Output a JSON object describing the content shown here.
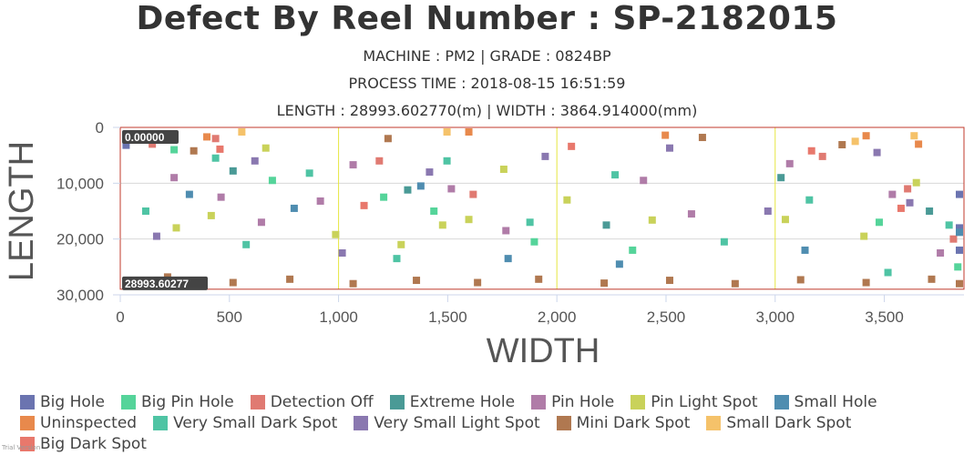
{
  "chart_data": {
    "type": "scatter",
    "title": "Defect By Reel Number : SP-2182015",
    "subtitles": [
      "MACHINE : PM2 | GRADE : 0824BP",
      "PROCESS TIME : 2018-08-15 16:51:59",
      "LENGTH : 28993.602770(m) | WIDTH : 3864.914000(mm)"
    ],
    "xlabel": "WIDTH",
    "ylabel": "LENGTH",
    "xlim": [
      0,
      3864.914
    ],
    "ylim": [
      0,
      30000
    ],
    "y_reversed": true,
    "xticks": [
      0,
      500,
      1000,
      1500,
      2000,
      2500,
      3000,
      3500
    ],
    "xtick_labels": [
      "0",
      "500",
      "1,000",
      "1,500",
      "2,000",
      "2,500",
      "3,000",
      "3,500"
    ],
    "yticks": [
      0,
      10000,
      20000,
      30000
    ],
    "ytick_labels": [
      "0",
      "10,000",
      "20,000",
      "30,000"
    ],
    "y_annotations": [
      {
        "y": 0,
        "label": "0.00000"
      },
      {
        "y": 28993.60277,
        "label": "28993.60277"
      }
    ],
    "lane_lines_x": [
      1000,
      2000,
      3000
    ],
    "reel_length": 28993.60277,
    "legend": [
      {
        "name": "Big Hole",
        "color": "#6b74b0"
      },
      {
        "name": "Big Pin Hole",
        "color": "#55d49a"
      },
      {
        "name": "Detection Off",
        "color": "#e07a72"
      },
      {
        "name": "Extreme Hole",
        "color": "#4a9a96"
      },
      {
        "name": "Pin Hole",
        "color": "#b07ca8"
      },
      {
        "name": "Pin Light Spot",
        "color": "#c9d25a"
      },
      {
        "name": "Small Hole",
        "color": "#4f8db0"
      },
      {
        "name": "Uninspected",
        "color": "#e8894c"
      },
      {
        "name": "Very Small Dark Spot",
        "color": "#4fc4a4"
      },
      {
        "name": "Very Small Light Spot",
        "color": "#8a78b0"
      },
      {
        "name": "Mini Dark Spot",
        "color": "#b07850"
      },
      {
        "name": "Small Dark Spot",
        "color": "#f5c26a"
      },
      {
        "name": "Big Dark Spot",
        "color": "#e8786c"
      }
    ],
    "series": [
      {
        "name": "Big Hole",
        "points": [
          [
            10,
            3200
          ],
          [
            3840,
            12000
          ],
          [
            3850,
            18000
          ],
          [
            3860,
            22000
          ]
        ]
      },
      {
        "name": "Big Pin Hole",
        "points": [
          [
            230,
            4000
          ],
          [
            680,
            9500
          ],
          [
            1190,
            12500
          ],
          [
            1420,
            15000
          ],
          [
            1880,
            20500
          ],
          [
            2330,
            22000
          ],
          [
            3460,
            17000
          ],
          [
            3820,
            25000
          ]
        ]
      },
      {
        "name": "Detection Off",
        "points": [
          [
            130,
            3000
          ],
          [
            420,
            2000
          ],
          [
            1170,
            6000
          ],
          [
            1600,
            12000
          ],
          [
            3200,
            5200
          ],
          [
            3590,
            11000
          ],
          [
            3800,
            20000
          ]
        ]
      },
      {
        "name": "Extreme Hole",
        "points": [
          [
            500,
            7800
          ],
          [
            1300,
            11200
          ],
          [
            2210,
            17500
          ],
          [
            3010,
            9000
          ],
          [
            3690,
            15000
          ]
        ]
      },
      {
        "name": "Pin Hole",
        "points": [
          [
            230,
            9000
          ],
          [
            445,
            12500
          ],
          [
            630,
            17000
          ],
          [
            900,
            13200
          ],
          [
            1050,
            6700
          ],
          [
            1500,
            11000
          ],
          [
            1750,
            18500
          ],
          [
            2380,
            9500
          ],
          [
            2600,
            15500
          ],
          [
            3050,
            6500
          ],
          [
            3520,
            12000
          ],
          [
            3740,
            22500
          ]
        ]
      },
      {
        "name": "Pin Light Spot",
        "points": [
          [
            240,
            18000
          ],
          [
            400,
            15800
          ],
          [
            650,
            3700
          ],
          [
            970,
            19200
          ],
          [
            1270,
            21000
          ],
          [
            1460,
            17500
          ],
          [
            1580,
            16500
          ],
          [
            1740,
            7500
          ],
          [
            2030,
            13000
          ],
          [
            2420,
            16600
          ],
          [
            3030,
            16500
          ],
          [
            3390,
            19500
          ],
          [
            3630,
            9900
          ]
        ]
      },
      {
        "name": "Small Hole",
        "points": [
          [
            300,
            12000
          ],
          [
            780,
            14500
          ],
          [
            1360,
            10500
          ],
          [
            1760,
            23500
          ],
          [
            2270,
            24500
          ],
          [
            3120,
            22000
          ],
          [
            3840,
            18800
          ]
        ]
      },
      {
        "name": "Uninspected",
        "points": [
          [
            380,
            1700
          ],
          [
            1580,
            500
          ],
          [
            2480,
            1400
          ],
          [
            3400,
            1500
          ],
          [
            3640,
            3000
          ]
        ]
      },
      {
        "name": "Very Small Dark Spot",
        "points": [
          [
            100,
            15000
          ],
          [
            420,
            5500
          ],
          [
            560,
            21000
          ],
          [
            850,
            8200
          ],
          [
            1250,
            23500
          ],
          [
            1480,
            6000
          ],
          [
            1860,
            17000
          ],
          [
            2250,
            8500
          ],
          [
            2750,
            20500
          ],
          [
            3140,
            13000
          ],
          [
            3500,
            26000
          ],
          [
            3780,
            17500
          ]
        ]
      },
      {
        "name": "Very Small Light Spot",
        "points": [
          [
            150,
            19500
          ],
          [
            600,
            6000
          ],
          [
            1000,
            22500
          ],
          [
            1400,
            8000
          ],
          [
            1930,
            5200
          ],
          [
            2500,
            3700
          ],
          [
            2950,
            15000
          ],
          [
            3450,
            4500
          ],
          [
            3600,
            13500
          ]
        ]
      },
      {
        "name": "Mini Dark Spot",
        "points": [
          [
            60,
            27500
          ],
          [
            200,
            26800
          ],
          [
            500,
            27800
          ],
          [
            760,
            27200
          ],
          [
            1050,
            28000
          ],
          [
            1340,
            27400
          ],
          [
            1620,
            27800
          ],
          [
            1900,
            27200
          ],
          [
            2200,
            27900
          ],
          [
            2500,
            27400
          ],
          [
            2800,
            28000
          ],
          [
            3100,
            27300
          ],
          [
            3400,
            27800
          ],
          [
            3700,
            27200
          ],
          [
            3850,
            28000
          ],
          [
            320,
            4200
          ],
          [
            1210,
            2000
          ],
          [
            2650,
            1800
          ],
          [
            3290,
            3100
          ]
        ]
      },
      {
        "name": "Small Dark Spot",
        "points": [
          [
            540,
            600
          ],
          [
            1480,
            800
          ],
          [
            3350,
            2500
          ],
          [
            3620,
            1500
          ]
        ]
      },
      {
        "name": "Big Dark Spot",
        "points": [
          [
            440,
            3900
          ],
          [
            1100,
            14000
          ],
          [
            2050,
            3400
          ],
          [
            3150,
            4200
          ],
          [
            3560,
            14500
          ]
        ]
      }
    ]
  }
}
